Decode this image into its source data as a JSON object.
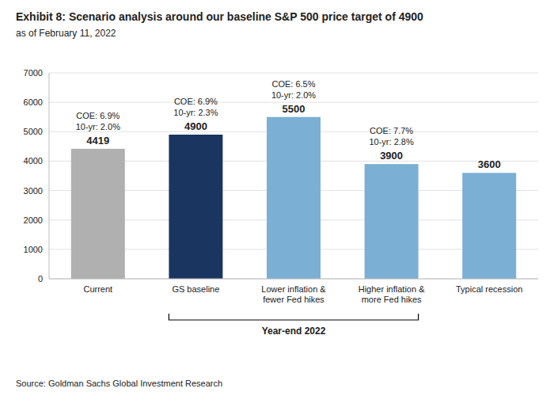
{
  "chart_data": {
    "type": "bar",
    "title": "Exhibit 8: Scenario analysis around our baseline S&P 500 price target of 4900",
    "subtitle": "as of February 11, 2022",
    "source": "Source: Goldman Sachs Global Investment Research",
    "categories": [
      "Current",
      "GS baseline",
      "Lower inflation &\nfewer Fed hikes",
      "Higher inflation &\nmore Fed hikes",
      "Typical recession"
    ],
    "values": [
      4419,
      4900,
      5500,
      3900,
      3600
    ],
    "colors": [
      "#b0b0b0",
      "#1a3560",
      "#7bafd4",
      "#7bafd4",
      "#7bafd4"
    ],
    "data_labels": true,
    "annotations": [
      [
        "10-yr: 2.0%",
        "COE: 6.9%"
      ],
      [
        "10-yr: 2.3%",
        "COE: 6.9%"
      ],
      [
        "10-yr: 2.0%",
        "COE: 6.5%"
      ],
      [
        "10-yr: 2.8%",
        "COE: 7.7%"
      ],
      null
    ],
    "bracket": {
      "label": "Year-end 2022",
      "categories": [
        "GS baseline",
        "Higher inflation &\nmore Fed hikes"
      ]
    },
    "ylim": [
      0,
      7000
    ],
    "yticks": [
      0,
      1000,
      2000,
      3000,
      4000,
      5000,
      6000,
      7000
    ],
    "grid": true
  }
}
